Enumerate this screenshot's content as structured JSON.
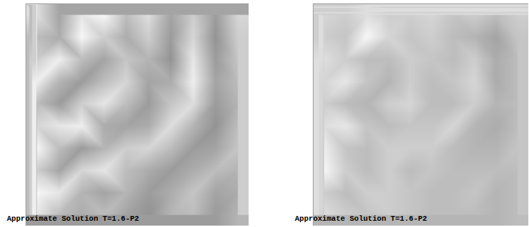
{
  "chart_data": [
    {
      "type": "heatmap",
      "caption": "Approximate Solution T=1.6-P2",
      "tick_labels": false,
      "value_range": [
        0,
        1
      ],
      "cells": [
        [
          0.8,
          0.45,
          0.85,
          0.95,
          0.6,
          0.8,
          0.45,
          0.7,
          0.4,
          0.75
        ],
        [
          0.6,
          0.5,
          0.95,
          0.7,
          0.5,
          0.7,
          0.4,
          0.75,
          0.35,
          0.7
        ],
        [
          0.7,
          0.9,
          0.6,
          0.45,
          0.65,
          0.55,
          0.35,
          0.85,
          0.4,
          0.65
        ],
        [
          0.9,
          0.55,
          0.4,
          0.6,
          0.75,
          0.45,
          0.5,
          0.9,
          0.45,
          0.6
        ],
        [
          0.6,
          0.4,
          0.7,
          0.85,
          0.6,
          0.4,
          0.65,
          0.8,
          0.4,
          0.55
        ],
        [
          0.75,
          0.85,
          0.9,
          0.5,
          0.45,
          0.5,
          0.8,
          0.55,
          0.35,
          0.6
        ],
        [
          0.95,
          0.6,
          0.4,
          0.55,
          0.7,
          0.75,
          0.6,
          0.4,
          0.45,
          0.65
        ],
        [
          0.7,
          0.45,
          0.75,
          0.85,
          0.6,
          0.5,
          0.4,
          0.5,
          0.6,
          0.55
        ],
        [
          0.95,
          0.85,
          0.55,
          0.45,
          0.55,
          0.4,
          0.5,
          0.65,
          0.45,
          0.5
        ],
        [
          0.85,
          0.6,
          0.5,
          0.6,
          0.45,
          0.35,
          0.55,
          0.6,
          0.4,
          0.55
        ]
      ]
    },
    {
      "type": "heatmap",
      "caption": "Approximate Solution T=1.6-P2",
      "tick_labels": false,
      "value_range": [
        0,
        1
      ],
      "cells": [
        [
          0.75,
          0.7,
          0.8,
          0.7,
          0.7,
          0.75,
          0.65,
          0.7,
          0.6,
          0.7
        ],
        [
          0.7,
          0.65,
          0.95,
          0.75,
          0.65,
          0.7,
          0.6,
          0.55,
          0.45,
          0.65
        ],
        [
          0.8,
          0.7,
          0.6,
          0.6,
          0.7,
          0.65,
          0.6,
          0.7,
          0.5,
          0.6
        ],
        [
          0.75,
          0.85,
          0.65,
          0.55,
          0.7,
          0.6,
          0.65,
          0.75,
          0.5,
          0.6
        ],
        [
          0.7,
          0.6,
          0.55,
          0.7,
          0.75,
          0.6,
          0.6,
          0.7,
          0.55,
          0.6
        ],
        [
          0.8,
          0.85,
          0.65,
          0.6,
          0.65,
          0.65,
          0.75,
          0.55,
          0.5,
          0.6
        ],
        [
          0.9,
          0.65,
          0.6,
          0.7,
          0.7,
          0.7,
          0.6,
          0.55,
          0.55,
          0.65
        ],
        [
          0.95,
          0.7,
          0.6,
          0.7,
          0.6,
          0.65,
          0.6,
          0.6,
          0.6,
          0.6
        ],
        [
          0.7,
          0.6,
          0.7,
          0.7,
          0.65,
          0.6,
          0.6,
          0.65,
          0.55,
          0.6
        ],
        [
          0.8,
          0.7,
          0.65,
          0.7,
          0.65,
          0.6,
          0.6,
          0.6,
          0.55,
          0.6
        ]
      ]
    }
  ]
}
